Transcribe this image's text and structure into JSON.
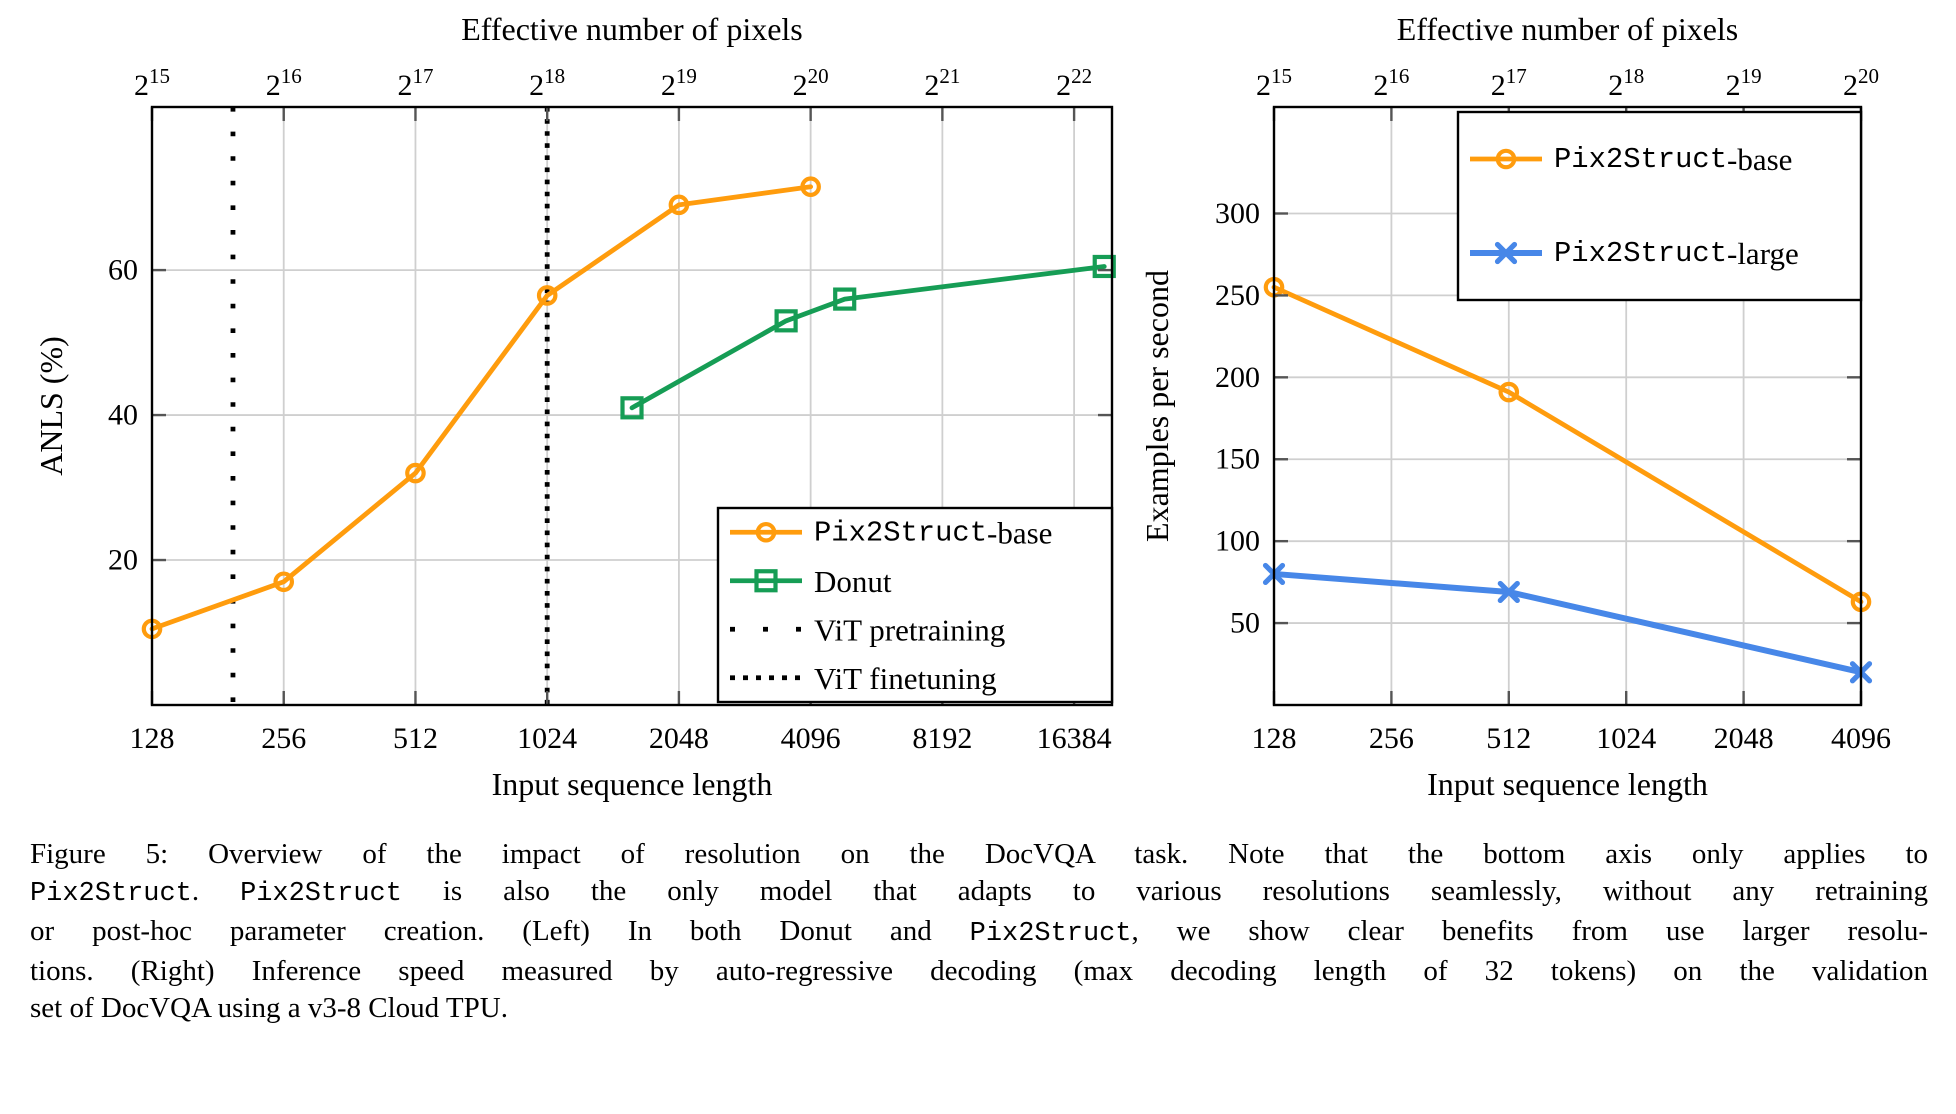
{
  "colors": {
    "orange": "#FF9C0D",
    "green": "#169D55",
    "blue": "#4787E8",
    "grid": "#CFCFCF",
    "axis": "#000000",
    "tick_stub": "#555555",
    "rule": "#000000",
    "background": "#FFFFFF"
  },
  "caption": {
    "lines": [
      {
        "justify": true,
        "segments": [
          {
            "t": "Figure 5:  Overview of the impact of resolution on the DocVQA task.  Note that the bottom axis only applies to",
            "mono": false
          }
        ]
      },
      {
        "justify": true,
        "segments": [
          {
            "t": "Pix2Struct",
            "mono": true
          },
          {
            "t": ". ",
            "mono": false
          },
          {
            "t": "Pix2Struct",
            "mono": true
          },
          {
            "t": " is also the only model that adapts to various resolutions seamlessly, without any retraining",
            "mono": false
          }
        ]
      },
      {
        "justify": true,
        "segments": [
          {
            "t": "or post-hoc parameter creation.  (Left) In both Donut and ",
            "mono": false
          },
          {
            "t": "Pix2Struct",
            "mono": true
          },
          {
            "t": ", we show clear benefits from use larger resolu-",
            "mono": false
          }
        ]
      },
      {
        "justify": true,
        "segments": [
          {
            "t": "tions. (Right) Inference speed measured by auto-regressive decoding (max decoding length of 32 tokens) on the validation",
            "mono": false
          }
        ]
      },
      {
        "justify": false,
        "segments": [
          {
            "t": "set of DocVQA using a v3-8 Cloud TPU.",
            "mono": false
          }
        ]
      }
    ]
  },
  "chart_data": [
    {
      "type": "line",
      "name": "left-docvqa-anls",
      "top_axis_title": "Effective number of pixels",
      "xlabel": "Input sequence length",
      "ylabel": "ANLS (%)",
      "x_scale": "log2",
      "xlim": [
        128,
        20000
      ],
      "ylim": [
        0,
        82.5
      ],
      "grid": true,
      "x_ticks": [
        128,
        256,
        512,
        1024,
        2048,
        4096,
        8192,
        16384
      ],
      "x_tick_labels": [
        "128",
        "256",
        "512",
        "1024",
        "2048",
        "4096",
        "8192",
        "16384"
      ],
      "top_tick_exponents": [
        "15",
        "16",
        "17",
        "18",
        "19",
        "20",
        "21",
        "22"
      ],
      "y_ticks": [
        20,
        40,
        60
      ],
      "series": [
        {
          "name": "Pix2Struct-base",
          "label_mono": "Pix2Struct",
          "label_rest": "-base",
          "color_key": "orange",
          "marker": "circle",
          "x": [
            128,
            256,
            512,
            1024,
            2048,
            4096
          ],
          "y": [
            10.5,
            17,
            32,
            56.5,
            69,
            71.5
          ]
        },
        {
          "name": "Donut",
          "label_mono": "",
          "label_rest": "Donut",
          "color_key": "green",
          "marker": "square",
          "note": "x values are token-equivalents of effective pixels (pixels / 256), read from plot",
          "x": [
            1600,
            3600,
            4900,
            19200
          ],
          "y": [
            41,
            53,
            56,
            60.5
          ]
        }
      ],
      "rules": [
        {
          "name": "ViT pretraining",
          "label_mono": "",
          "label_rest": "ViT pretraining",
          "x": 196,
          "dash": "sparse"
        },
        {
          "name": "ViT finetuning",
          "label_mono": "",
          "label_rest": "ViT finetuning",
          "x": 1024,
          "dash": "dense"
        }
      ],
      "legend_position": "bottom-right",
      "legend_entries": [
        {
          "kind": "series",
          "ref": 0
        },
        {
          "kind": "series",
          "ref": 1
        },
        {
          "kind": "rule",
          "ref": 0
        },
        {
          "kind": "rule",
          "ref": 1
        }
      ]
    },
    {
      "type": "line",
      "name": "right-inference-speed",
      "top_axis_title": "Effective number of pixels",
      "xlabel": "Input sequence length",
      "ylabel": "Examples per second",
      "x_scale": "log2",
      "xlim": [
        128,
        4096
      ],
      "ylim": [
        0,
        365
      ],
      "grid": true,
      "x_ticks": [
        128,
        256,
        512,
        1024,
        2048,
        4096
      ],
      "x_tick_labels": [
        "128",
        "256",
        "512",
        "1024",
        "2048",
        "4096"
      ],
      "top_tick_exponents": [
        "15",
        "16",
        "17",
        "18",
        "19",
        "20"
      ],
      "y_ticks": [
        50,
        100,
        150,
        200,
        250,
        300
      ],
      "series": [
        {
          "name": "Pix2Struct-base",
          "label_mono": "Pix2Struct",
          "label_rest": "-base",
          "color_key": "orange",
          "marker": "circle",
          "x": [
            128,
            512,
            4096
          ],
          "y": [
            255,
            191,
            63
          ]
        },
        {
          "name": "Pix2Struct-large",
          "label_mono": "Pix2Struct",
          "label_rest": "-large",
          "color_key": "blue",
          "marker": "x",
          "x": [
            128,
            512,
            4096
          ],
          "y": [
            80,
            69,
            20
          ]
        }
      ],
      "rules": [],
      "legend_position": "top-right",
      "legend_entries": [
        {
          "kind": "series",
          "ref": 0
        },
        {
          "kind": "series",
          "ref": 1
        }
      ]
    }
  ]
}
